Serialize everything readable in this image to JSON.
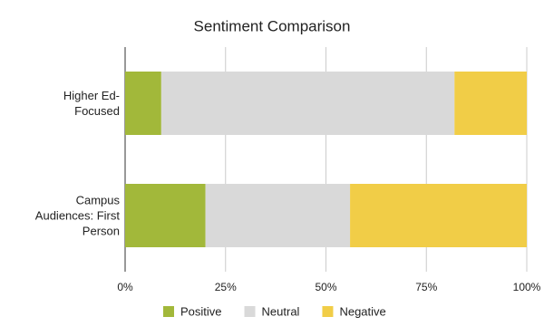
{
  "chart_data": {
    "type": "stacked-bar-horizontal",
    "title": "Sentiment Comparison",
    "categories": [
      "Higher Ed-Focused",
      "Campus Audiences: First Person"
    ],
    "series": [
      {
        "name": "Positive",
        "color": "#a2b83a",
        "values": [
          9,
          20
        ]
      },
      {
        "name": "Neutral",
        "color": "#d9d9d9",
        "values": [
          73,
          36
        ]
      },
      {
        "name": "Negative",
        "color": "#f1cd47",
        "values": [
          18,
          44
        ]
      }
    ],
    "xlim": [
      0,
      100
    ],
    "xticks": [
      {
        "value": 0,
        "label": "0%"
      },
      {
        "value": 25,
        "label": "25%"
      },
      {
        "value": 50,
        "label": "50%"
      },
      {
        "value": 75,
        "label": "75%"
      },
      {
        "value": 100,
        "label": "100%"
      }
    ],
    "grid": true,
    "legend": "bottom"
  }
}
